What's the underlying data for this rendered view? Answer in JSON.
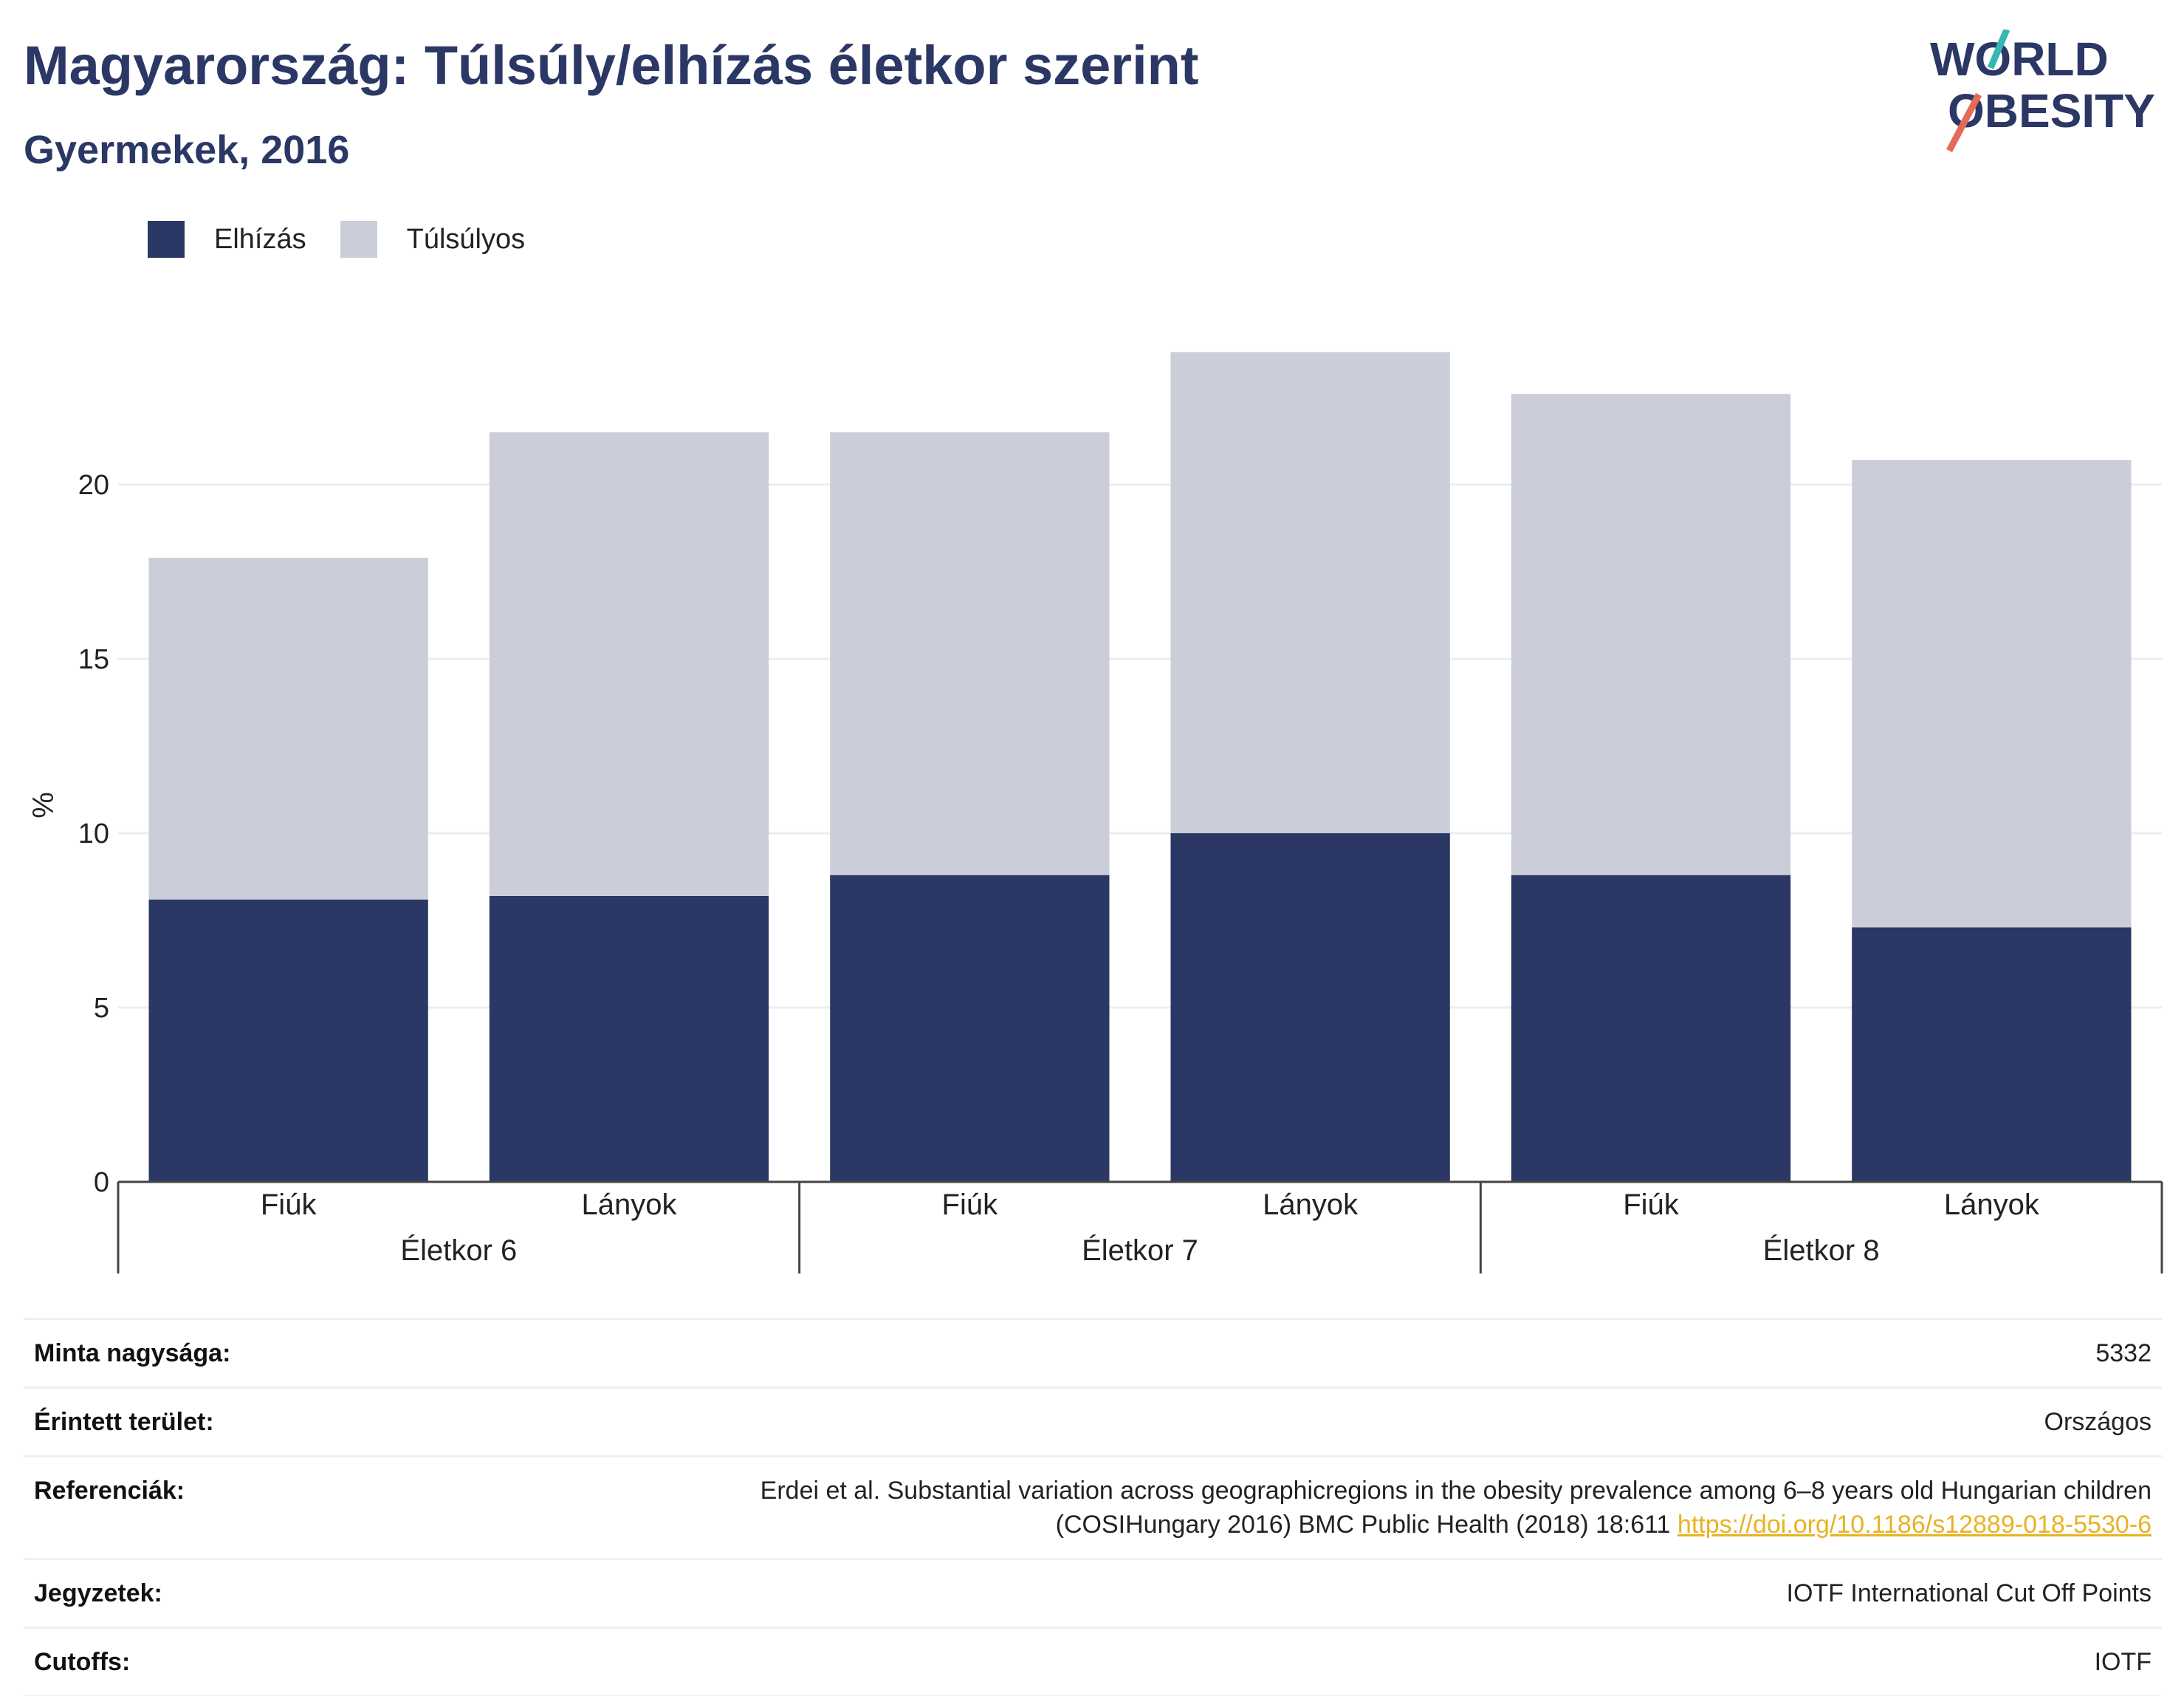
{
  "header": {
    "title": "Magyarország: Túlsúly/elhízás életkor szerint",
    "subtitle": "Gyermekek, 2016"
  },
  "logo": {
    "line1": "WORLD",
    "line2": "OBESITY",
    "colors": {
      "text": "#2b3765",
      "slash_top": "#36b7b4",
      "slash_bottom": "#e46b5a"
    }
  },
  "chart_data": {
    "type": "bar",
    "stacked": true,
    "title": "",
    "xlabel": "",
    "ylabel": "%",
    "ylim": [
      0,
      25
    ],
    "yticks": [
      0,
      5,
      10,
      15,
      20
    ],
    "grid": true,
    "legend_position": "top-left",
    "groups": [
      "Életkor 6",
      "Életkor 7",
      "Életkor 8"
    ],
    "categories": [
      "Fiúk",
      "Lányok",
      "Fiúk",
      "Lányok",
      "Fiúk",
      "Lányok"
    ],
    "category_group": [
      0,
      0,
      1,
      1,
      2,
      2
    ],
    "series": [
      {
        "name": "Elhízás",
        "color": "#2b3765",
        "values": [
          8.1,
          8.2,
          8.8,
          10.0,
          8.8,
          7.3
        ]
      },
      {
        "name": "Túlsúlyos",
        "color": "#cbcdd9",
        "values": [
          9.8,
          13.3,
          12.7,
          13.8,
          13.8,
          13.4
        ]
      }
    ]
  },
  "info": {
    "sample_label": "Minta nagysága:",
    "sample_value": "5332",
    "area_label": "Érintett terület:",
    "area_value": "Országos",
    "ref_label": "Referenciák:",
    "ref_line1": "Erdei et al. Substantial variation across geographicregions in the obesity prevalence among 6–8 years old Hungarian children",
    "ref_line2": "(COSIHungary 2016) BMC Public Health (2018) 18:611",
    "ref_link": "https://doi.org/10.1186/s12889-018-5530-6",
    "notes_label": "Jegyzetek:",
    "notes_value": "IOTF International Cut Off Points",
    "cutoffs_label": "Cutoffs:",
    "cutoffs_value": "IOTF"
  }
}
